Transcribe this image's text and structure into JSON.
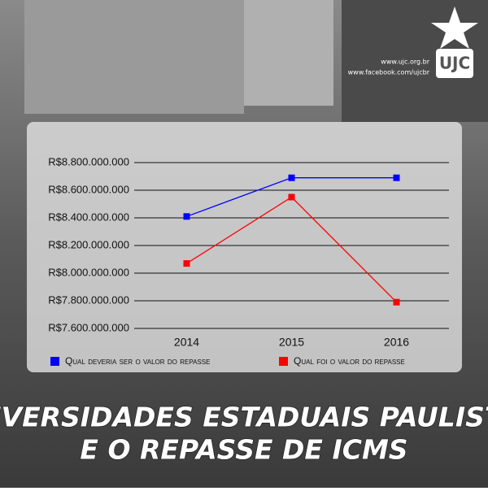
{
  "header": {
    "links": [
      "www.ujc.org.br",
      "www.facebook.com/ujcbr"
    ],
    "logo": "UJC"
  },
  "chart_data": {
    "type": "line",
    "title": [
      "UNIVERSIDADES ESTADUAIS PAULISTAS",
      "E O REPASSE DE ICMS"
    ],
    "categories": [
      "2014",
      "2015",
      "2016"
    ],
    "series": [
      {
        "name": "Qual deveria ser o valor do repasse",
        "color": "#0000ff",
        "values": [
          8410000000,
          8690000000,
          8690000000
        ]
      },
      {
        "name": "Qual foi o valor do repasse",
        "color": "#ff0000",
        "values": [
          8070000000,
          8550000000,
          7790000000
        ]
      }
    ],
    "ylim": [
      7600000000,
      8800000000
    ],
    "yticks": [
      {
        "value": 7600000000,
        "label": "R$7.600.000.000"
      },
      {
        "value": 7800000000,
        "label": "R$7.800.000.000"
      },
      {
        "value": 8000000000,
        "label": "R$8.000.000.000"
      },
      {
        "value": 8200000000,
        "label": "R$8.200.000.000"
      },
      {
        "value": 8400000000,
        "label": "R$8.400.000.000"
      },
      {
        "value": 8600000000,
        "label": "R$8.600.000.000"
      },
      {
        "value": 8800000000,
        "label": "R$8.800.000.000"
      }
    ],
    "grid": true,
    "legend": "bottom"
  }
}
